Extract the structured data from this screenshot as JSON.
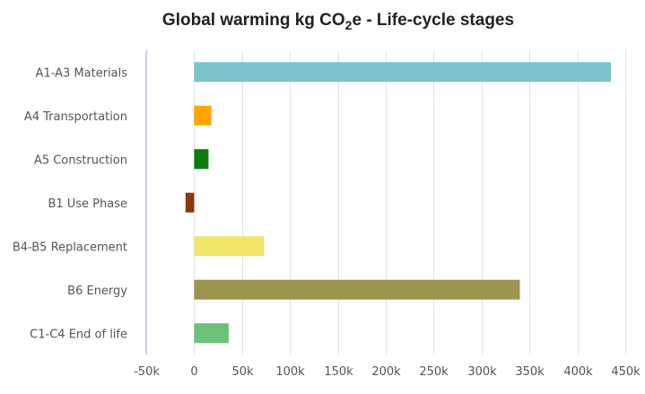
{
  "chart_data": {
    "type": "bar",
    "orientation": "horizontal",
    "title": {
      "prefix": "Global warming kg CO",
      "subscript": "2",
      "suffix": "e - Life-cycle stages"
    },
    "categories": [
      "A1-A3 Materials",
      "A4 Transportation",
      "A5 Construction",
      "B1 Use Phase",
      "B4-B5 Replacement",
      "B6 Energy",
      "C1-C4 End of life"
    ],
    "values": [
      435000,
      18000,
      15000,
      -9000,
      73000,
      340000,
      36000
    ],
    "colors": [
      "#7cc3cc",
      "#ffa500",
      "#0b7c0b",
      "#8b3a0f",
      "#f0e66a",
      "#9e9452",
      "#6bc07a"
    ],
    "xlim": [
      -50000,
      450000
    ],
    "xticks": [
      -50000,
      0,
      50000,
      100000,
      150000,
      200000,
      250000,
      300000,
      350000,
      400000,
      450000
    ],
    "xtick_labels": [
      "-50k",
      "0",
      "50k",
      "100k",
      "150k",
      "200k",
      "250k",
      "300k",
      "350k",
      "400k",
      "450k"
    ],
    "xlabel": "",
    "ylabel": "",
    "grid": "vertical",
    "legend": "none"
  }
}
